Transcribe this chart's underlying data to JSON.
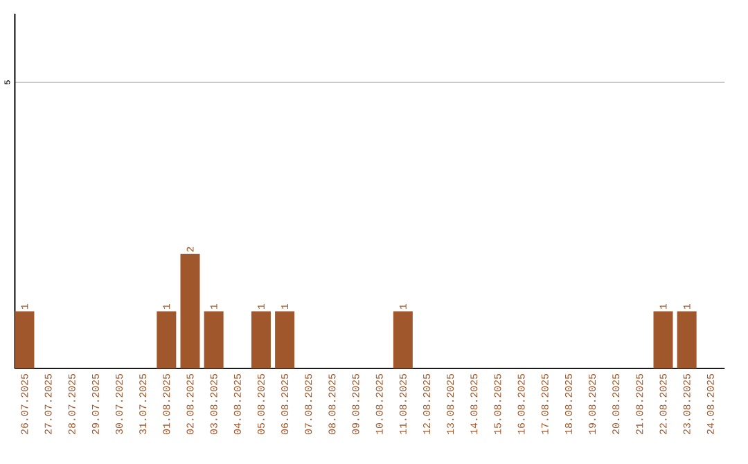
{
  "chart_data": {
    "type": "bar",
    "categories": [
      "26.07.2025",
      "27.07.2025",
      "28.07.2025",
      "29.07.2025",
      "30.07.2025",
      "31.07.2025",
      "01.08.2025",
      "02.08.2025",
      "03.08.2025",
      "04.08.2025",
      "05.08.2025",
      "06.08.2025",
      "07.08.2025",
      "08.08.2025",
      "09.08.2025",
      "10.08.2025",
      "11.08.2025",
      "12.08.2025",
      "13.08.2025",
      "14.08.2025",
      "15.08.2025",
      "16.08.2025",
      "17.08.2025",
      "18.08.2025",
      "19.08.2025",
      "20.08.2025",
      "21.08.2025",
      "22.08.2025",
      "23.08.2025",
      "24.08.2025"
    ],
    "values": [
      1,
      0,
      0,
      0,
      0,
      0,
      1,
      2,
      1,
      0,
      1,
      1,
      0,
      0,
      0,
      0,
      1,
      0,
      0,
      0,
      0,
      0,
      0,
      0,
      0,
      0,
      0,
      1,
      1,
      0
    ],
    "value_labels": [
      "1",
      null,
      null,
      null,
      null,
      null,
      "1",
      "2",
      "1",
      null,
      "1",
      "1",
      null,
      null,
      null,
      null,
      "1",
      null,
      null,
      null,
      null,
      null,
      null,
      null,
      null,
      null,
      null,
      "1",
      "1",
      null
    ],
    "color": "#a0572b",
    "ylim": [
      0,
      6.2
    ],
    "yticks": [
      5
    ],
    "grid": "y"
  }
}
